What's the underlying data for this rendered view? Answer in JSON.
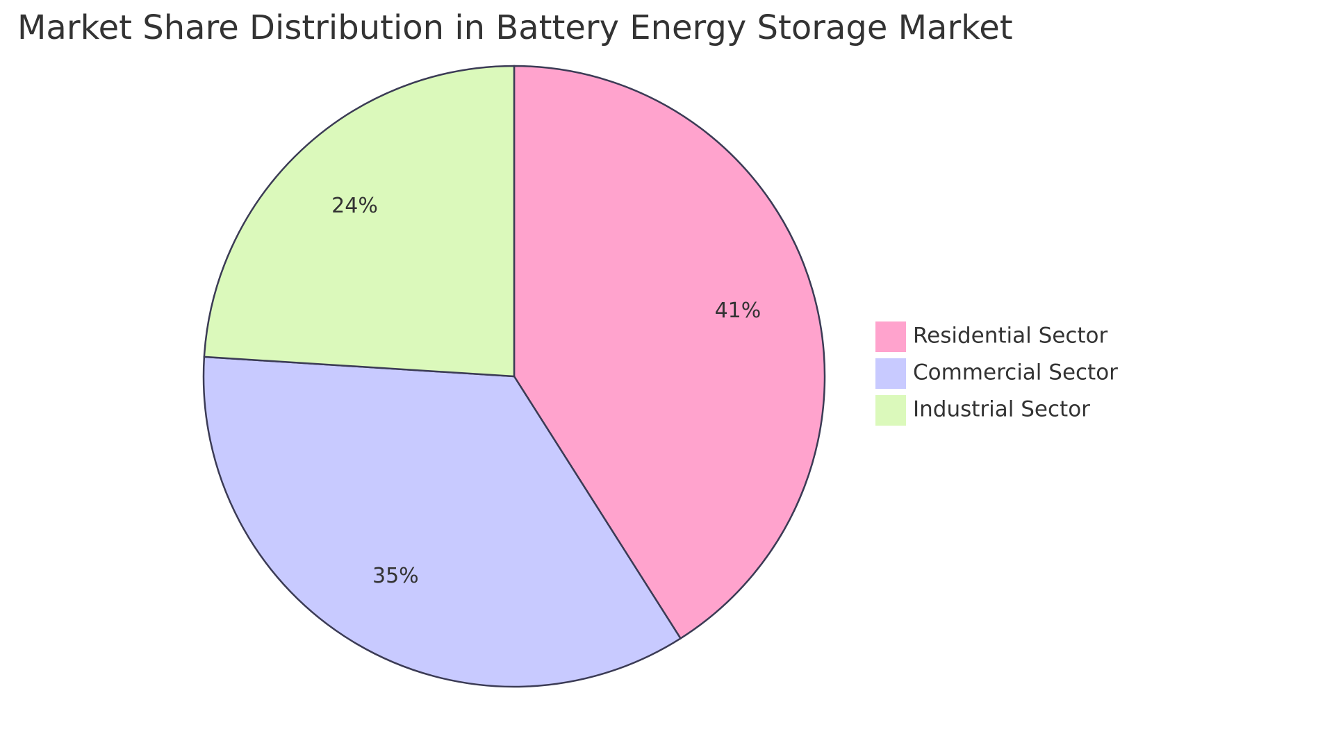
{
  "chart_data": {
    "type": "pie",
    "title": "Market Share Distribution in Battery Energy Storage Market",
    "categories": [
      "Residential Sector",
      "Commercial Sector",
      "Industrial Sector"
    ],
    "values": [
      41,
      35,
      24
    ],
    "value_labels": [
      "41%",
      "35%",
      "24%"
    ],
    "colors": [
      "#ffa3cd",
      "#c8caff",
      "#dbf9bb"
    ],
    "legend": "right"
  }
}
